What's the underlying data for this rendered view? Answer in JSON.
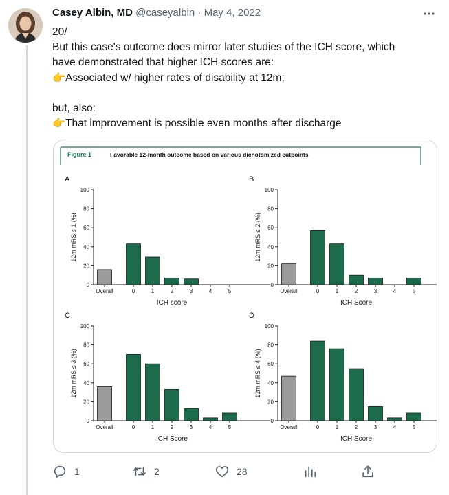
{
  "tweet": {
    "author_name": "Casey Albin, MD",
    "handle": "@caseyalbin",
    "separator": "·",
    "date": "May 4, 2022",
    "lines": [
      "20/",
      "But this case's outcome does mirror later studies of the ICH score, which",
      "have demonstrated that higher ICH scores are:",
      "Associated w/ higher rates of disability at 12m;",
      "",
      "but, also:",
      "That improvement is possible even months after discharge"
    ]
  },
  "figure": {
    "label": "Figure 1",
    "title": "Favorable 12-month outcome based on various dichotomized cutpoints",
    "colors": {
      "overall": "#9b9b9b",
      "score": "#1c6b4a",
      "accent": "#1c7a55"
    }
  },
  "chart_data": [
    {
      "type": "bar",
      "panel": "A",
      "ylabel": "12m mRS ≤ 1 (%)",
      "xlabel": "ICH score",
      "categories": [
        "Overall",
        "0",
        "1",
        "2",
        "3",
        "4",
        "5"
      ],
      "values": [
        16,
        43,
        29,
        7,
        6,
        0,
        0
      ],
      "ylim": [
        0,
        100
      ],
      "yticks": [
        "0",
        "20",
        "40",
        "60",
        "80",
        "100"
      ]
    },
    {
      "type": "bar",
      "panel": "B",
      "ylabel": "12m mRS ≤ 2 (%)",
      "xlabel": "ICH Score",
      "categories": [
        "Overall",
        "0",
        "1",
        "2",
        "3",
        "4",
        "5"
      ],
      "values": [
        22,
        57,
        43,
        10,
        7,
        0,
        7
      ],
      "ylim": [
        0,
        100
      ],
      "yticks": [
        "0",
        "20",
        "40",
        "60",
        "80",
        "100"
      ]
    },
    {
      "type": "bar",
      "panel": "C",
      "ylabel": "12m mRS ≤ 3 (%)",
      "xlabel": "ICH Score",
      "categories": [
        "Overall",
        "0",
        "1",
        "2",
        "3",
        "4",
        "5"
      ],
      "values": [
        36,
        70,
        60,
        33,
        13,
        3,
        8
      ],
      "ylim": [
        0,
        100
      ],
      "yticks": [
        "0",
        "20",
        "40",
        "60",
        "80",
        "100"
      ]
    },
    {
      "type": "bar",
      "panel": "D",
      "ylabel": "12m mRS ≤ 4 (%)",
      "xlabel": "ICH Score",
      "categories": [
        "Overall",
        "0",
        "1",
        "2",
        "3",
        "4",
        "5"
      ],
      "values": [
        47,
        84,
        76,
        55,
        15,
        3,
        8
      ],
      "ylim": [
        0,
        100
      ],
      "yticks": [
        "0",
        "20",
        "40",
        "60",
        "80",
        "100"
      ]
    }
  ],
  "actions": {
    "reply_count": "1",
    "retweet_count": "2",
    "like_count": "28"
  },
  "icons": [
    "more-icon",
    "finger-point-icon",
    "reply-icon",
    "retweet-icon",
    "like-icon",
    "views-icon",
    "share-icon"
  ]
}
